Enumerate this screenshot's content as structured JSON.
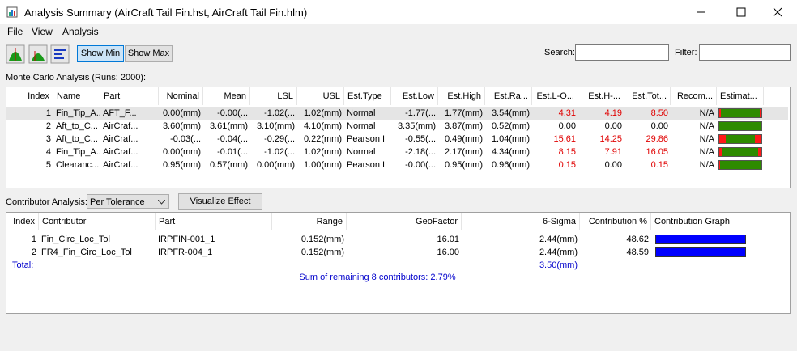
{
  "window": {
    "title": "Analysis Summary (AirCraft Tail Fin.hst, AirCraft Tail Fin.hlm)"
  },
  "menu": [
    "File",
    "View",
    "Analysis"
  ],
  "toolbar": {
    "buttons": [
      "Show Min",
      "Show Max"
    ],
    "search_label": "Search:",
    "filter_label": "Filter:"
  },
  "monte_carlo": {
    "label": "Monte Carlo Analysis (Runs: 2000):",
    "columns": [
      "Index",
      "Name",
      "Part",
      "Nominal",
      "Mean",
      "LSL",
      "USL",
      "Est.Type",
      "Est.Low",
      "Est.High",
      "Est.Ra...",
      "Est.L-O...",
      "Est.H-...",
      "Est.Tot...",
      "Recom...",
      "Estimat..."
    ],
    "rows": [
      [
        "1",
        "Fin_Tip_A...",
        "AFT_F...",
        "0.00(mm)",
        "-0.00(...",
        "-1.02(...",
        "1.02(mm)",
        "Normal",
        "-1.77(...",
        "1.77(mm)",
        "3.54(mm)",
        "4.31",
        "4.19",
        "8.50",
        "N/A"
      ],
      [
        "2",
        "Aft_to_C...",
        "AirCraf...",
        "3.60(mm)",
        "3.61(mm)",
        "3.10(mm)",
        "4.10(mm)",
        "Normal",
        "3.35(mm)",
        "3.87(mm)",
        "0.52(mm)",
        "0.00",
        "0.00",
        "0.00",
        "N/A"
      ],
      [
        "3",
        "Aft_to_C...",
        "AirCraf...",
        "-0.03(...",
        "-0.04(...",
        "-0.29(...",
        "0.22(mm)",
        "Pearson I",
        "-0.55(...",
        "0.49(mm)",
        "1.04(mm)",
        "15.61",
        "14.25",
        "29.86",
        "N/A"
      ],
      [
        "4",
        "Fin_Tip_A...",
        "AirCraf...",
        "0.00(mm)",
        "-0.01(...",
        "-1.02(...",
        "1.02(mm)",
        "Normal",
        "-2.18(...",
        "2.17(mm)",
        "4.34(mm)",
        "8.15",
        "7.91",
        "16.05",
        "N/A"
      ],
      [
        "5",
        "Clearanc...",
        "AirCraf...",
        "0.95(mm)",
        "0.57(mm)",
        "0.00(mm)",
        "1.00(mm)",
        "Pearson I",
        "-0.00(...",
        "0.95(mm)",
        "0.96(mm)",
        "0.15",
        "0.00",
        "0.15",
        "N/A"
      ]
    ]
  },
  "contributor": {
    "label": "Contributor Analysis:",
    "mode": "Per Tolerance",
    "button": "Visualize Effect",
    "columns": [
      "Index",
      "Contributor",
      "Part",
      "Range",
      "GeoFactor",
      "6-Sigma",
      "Contribution %",
      "Contribution Graph"
    ],
    "rows": [
      [
        "1",
        "Fin_Circ_Loc_Tol",
        "IRPFIN-001_1",
        "0.152(mm)",
        "16.01",
        "2.44(mm)",
        "48.62"
      ],
      [
        "2",
        "FR4_Fin_Circ_Loc_Tol",
        "IRPFR-004_1",
        "0.152(mm)",
        "16.00",
        "2.44(mm)",
        "48.59"
      ]
    ],
    "total": {
      "label": "Total:",
      "sigma": "3.50(mm)"
    },
    "summary": "Sum of remaining 8 contributors: 2.79%"
  }
}
